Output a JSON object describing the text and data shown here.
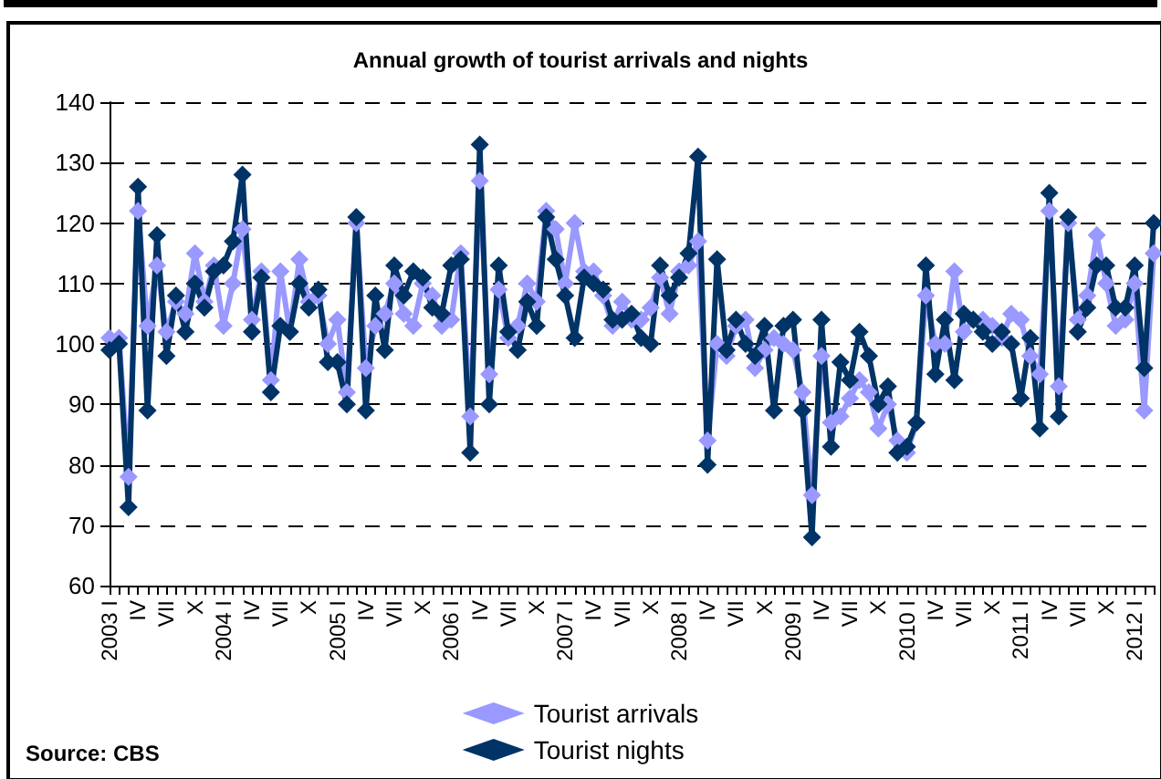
{
  "chart_data": {
    "type": "line",
    "title": "Annual growth of tourist arrivals and nights",
    "categories": [
      "2003 I",
      null,
      null,
      "IV",
      null,
      null,
      "VII",
      null,
      null,
      "X",
      null,
      null,
      "2004 I",
      null,
      null,
      "IV",
      null,
      null,
      "VII",
      null,
      null,
      "X",
      null,
      null,
      "2005 I",
      null,
      null,
      "IV",
      null,
      null,
      "VII",
      null,
      null,
      "X",
      null,
      null,
      "2006 I",
      null,
      null,
      "IV",
      null,
      null,
      "VII",
      null,
      null,
      "X",
      null,
      null,
      "2007 I",
      null,
      null,
      "IV",
      null,
      null,
      "VII",
      null,
      null,
      "X",
      null,
      null,
      "2008 I",
      null,
      null,
      "IV",
      null,
      null,
      "VII",
      null,
      null,
      "X",
      null,
      null,
      "2009 I",
      null,
      null,
      "IV",
      null,
      null,
      "VII",
      null,
      null,
      "X",
      null,
      null,
      "2010 I",
      null,
      null,
      "IV",
      null,
      null,
      "VII",
      null,
      null,
      "X",
      null,
      null,
      "2011 I",
      null,
      null,
      "IV",
      null,
      null,
      "VII",
      null,
      null,
      "X",
      null,
      null,
      "2012 I",
      null,
      null
    ],
    "series": [
      {
        "name": "Tourist arrivals",
        "color": "#9999ff",
        "values": [
          101,
          101,
          78,
          122,
          103,
          113,
          102,
          107,
          105,
          115,
          107,
          113,
          103,
          110,
          119,
          104,
          112,
          94,
          112,
          102,
          114,
          107,
          108,
          100,
          104,
          92,
          120,
          96,
          103,
          105,
          110,
          105,
          103,
          110,
          108,
          103,
          104,
          115,
          88,
          127,
          95,
          109,
          101,
          103,
          110,
          107,
          122,
          119,
          110,
          120,
          112,
          112,
          108,
          103,
          107,
          104,
          104,
          106,
          111,
          105,
          112,
          113,
          117,
          84,
          100,
          98,
          103,
          104,
          96,
          99,
          101,
          100,
          99,
          92,
          75,
          98,
          87,
          88,
          91,
          94,
          92,
          86,
          90,
          84,
          82,
          87,
          108,
          100,
          100,
          112,
          102,
          104,
          104,
          103,
          101,
          105,
          104,
          98,
          95,
          122,
          93,
          120,
          104,
          108,
          118,
          110,
          103,
          104,
          110,
          89,
          115
        ]
      },
      {
        "name": "Tourist nights",
        "color": "#003366",
        "values": [
          99,
          100,
          73,
          126,
          89,
          118,
          98,
          108,
          102,
          110,
          106,
          112,
          113,
          117,
          128,
          102,
          111,
          92,
          103,
          102,
          110,
          106,
          109,
          97,
          97,
          90,
          121,
          89,
          108,
          99,
          113,
          108,
          112,
          111,
          106,
          105,
          113,
          114,
          82,
          133,
          90,
          113,
          102,
          99,
          107,
          103,
          121,
          114,
          108,
          101,
          111,
          110,
          109,
          104,
          104,
          105,
          101,
          100,
          113,
          108,
          111,
          115,
          131,
          80,
          114,
          99,
          104,
          100,
          98,
          103,
          89,
          103,
          104,
          89,
          68,
          104,
          83,
          97,
          94,
          102,
          98,
          90,
          93,
          82,
          83,
          87,
          113,
          95,
          104,
          94,
          105,
          104,
          102,
          100,
          102,
          100,
          91,
          101,
          86,
          125,
          88,
          121,
          102,
          106,
          113,
          113,
          106,
          106,
          113,
          96,
          120
        ]
      }
    ],
    "ylim": [
      60,
      140
    ],
    "yticks": [
      60,
      70,
      80,
      90,
      100,
      110,
      120,
      130,
      140
    ],
    "grid": "y",
    "line_style": "solid",
    "marker": "diamond",
    "legend": "bottom",
    "annotations": [
      "Source: CBS"
    ]
  }
}
